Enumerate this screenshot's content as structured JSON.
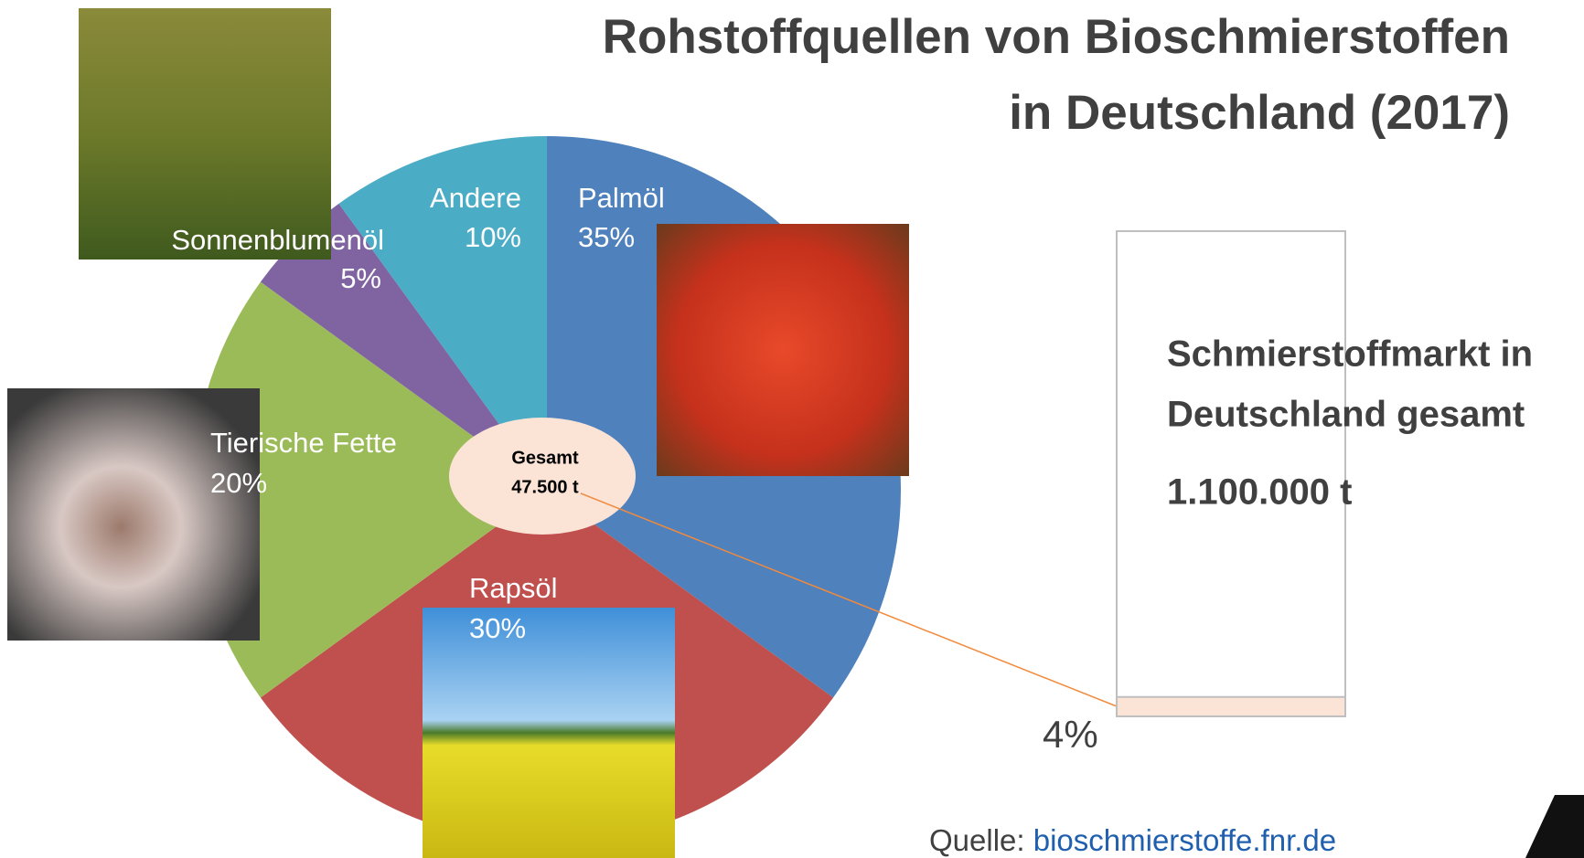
{
  "chart_data": [
    {
      "type": "pie",
      "title": [
        "Rohstoffquellen von Bioschmierstoffen",
        "in Deutschland (2017)"
      ],
      "categories": [
        "Palmöl",
        "Rapsöl",
        "Tierische Fette",
        "Sonnenblumenöl",
        "Andere"
      ],
      "values": [
        35,
        30,
        20,
        5,
        10
      ],
      "value_labels": [
        "35%",
        "30%",
        "20%",
        "5%",
        "10%"
      ],
      "colors": [
        "#4f81bd",
        "#c0504d",
        "#9bbb59",
        "#8064a2",
        "#4bacc6"
      ],
      "center_label": [
        "Gesamt",
        "47.500 t"
      ]
    },
    {
      "type": "bar",
      "values": [
        4
      ],
      "value_labels": [
        "4%"
      ],
      "color": "#fbe3d6",
      "ylim": [
        0,
        100
      ],
      "annotations": [
        "Schmierstoffmarkt in",
        "Deutschland gesamt",
        "1.100.000 t"
      ]
    }
  ],
  "source": {
    "label": "Quelle:",
    "link": "bioschmierstoffe.fnr.de"
  }
}
